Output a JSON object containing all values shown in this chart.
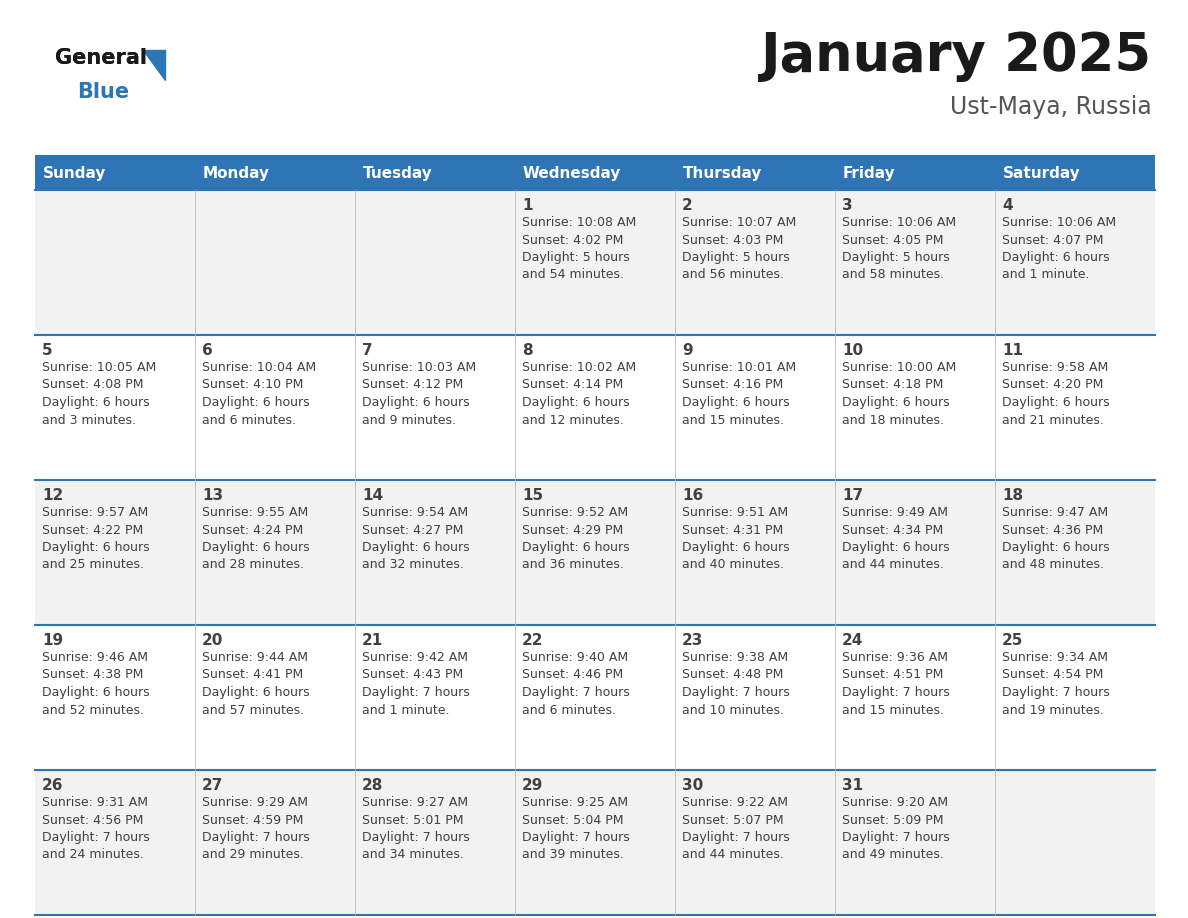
{
  "title": "January 2025",
  "subtitle": "Ust-Maya, Russia",
  "days_of_week": [
    "Sunday",
    "Monday",
    "Tuesday",
    "Wednesday",
    "Thursday",
    "Friday",
    "Saturday"
  ],
  "header_bg": "#2E75B6",
  "header_text_color": "#FFFFFF",
  "row_bg_even": "#F2F2F2",
  "row_bg_odd": "#FFFFFF",
  "border_color": "#2E75B6",
  "text_color": "#404040",
  "calendar_data": [
    {
      "day": 1,
      "col": 3,
      "row": 0,
      "sunrise": "10:08 AM",
      "sunset": "4:02 PM",
      "daylight": "5 hours\nand 54 minutes."
    },
    {
      "day": 2,
      "col": 4,
      "row": 0,
      "sunrise": "10:07 AM",
      "sunset": "4:03 PM",
      "daylight": "5 hours\nand 56 minutes."
    },
    {
      "day": 3,
      "col": 5,
      "row": 0,
      "sunrise": "10:06 AM",
      "sunset": "4:05 PM",
      "daylight": "5 hours\nand 58 minutes."
    },
    {
      "day": 4,
      "col": 6,
      "row": 0,
      "sunrise": "10:06 AM",
      "sunset": "4:07 PM",
      "daylight": "6 hours\nand 1 minute."
    },
    {
      "day": 5,
      "col": 0,
      "row": 1,
      "sunrise": "10:05 AM",
      "sunset": "4:08 PM",
      "daylight": "6 hours\nand 3 minutes."
    },
    {
      "day": 6,
      "col": 1,
      "row": 1,
      "sunrise": "10:04 AM",
      "sunset": "4:10 PM",
      "daylight": "6 hours\nand 6 minutes."
    },
    {
      "day": 7,
      "col": 2,
      "row": 1,
      "sunrise": "10:03 AM",
      "sunset": "4:12 PM",
      "daylight": "6 hours\nand 9 minutes."
    },
    {
      "day": 8,
      "col": 3,
      "row": 1,
      "sunrise": "10:02 AM",
      "sunset": "4:14 PM",
      "daylight": "6 hours\nand 12 minutes."
    },
    {
      "day": 9,
      "col": 4,
      "row": 1,
      "sunrise": "10:01 AM",
      "sunset": "4:16 PM",
      "daylight": "6 hours\nand 15 minutes."
    },
    {
      "day": 10,
      "col": 5,
      "row": 1,
      "sunrise": "10:00 AM",
      "sunset": "4:18 PM",
      "daylight": "6 hours\nand 18 minutes."
    },
    {
      "day": 11,
      "col": 6,
      "row": 1,
      "sunrise": "9:58 AM",
      "sunset": "4:20 PM",
      "daylight": "6 hours\nand 21 minutes."
    },
    {
      "day": 12,
      "col": 0,
      "row": 2,
      "sunrise": "9:57 AM",
      "sunset": "4:22 PM",
      "daylight": "6 hours\nand 25 minutes."
    },
    {
      "day": 13,
      "col": 1,
      "row": 2,
      "sunrise": "9:55 AM",
      "sunset": "4:24 PM",
      "daylight": "6 hours\nand 28 minutes."
    },
    {
      "day": 14,
      "col": 2,
      "row": 2,
      "sunrise": "9:54 AM",
      "sunset": "4:27 PM",
      "daylight": "6 hours\nand 32 minutes."
    },
    {
      "day": 15,
      "col": 3,
      "row": 2,
      "sunrise": "9:52 AM",
      "sunset": "4:29 PM",
      "daylight": "6 hours\nand 36 minutes."
    },
    {
      "day": 16,
      "col": 4,
      "row": 2,
      "sunrise": "9:51 AM",
      "sunset": "4:31 PM",
      "daylight": "6 hours\nand 40 minutes."
    },
    {
      "day": 17,
      "col": 5,
      "row": 2,
      "sunrise": "9:49 AM",
      "sunset": "4:34 PM",
      "daylight": "6 hours\nand 44 minutes."
    },
    {
      "day": 18,
      "col": 6,
      "row": 2,
      "sunrise": "9:47 AM",
      "sunset": "4:36 PM",
      "daylight": "6 hours\nand 48 minutes."
    },
    {
      "day": 19,
      "col": 0,
      "row": 3,
      "sunrise": "9:46 AM",
      "sunset": "4:38 PM",
      "daylight": "6 hours\nand 52 minutes."
    },
    {
      "day": 20,
      "col": 1,
      "row": 3,
      "sunrise": "9:44 AM",
      "sunset": "4:41 PM",
      "daylight": "6 hours\nand 57 minutes."
    },
    {
      "day": 21,
      "col": 2,
      "row": 3,
      "sunrise": "9:42 AM",
      "sunset": "4:43 PM",
      "daylight": "7 hours\nand 1 minute."
    },
    {
      "day": 22,
      "col": 3,
      "row": 3,
      "sunrise": "9:40 AM",
      "sunset": "4:46 PM",
      "daylight": "7 hours\nand 6 minutes."
    },
    {
      "day": 23,
      "col": 4,
      "row": 3,
      "sunrise": "9:38 AM",
      "sunset": "4:48 PM",
      "daylight": "7 hours\nand 10 minutes."
    },
    {
      "day": 24,
      "col": 5,
      "row": 3,
      "sunrise": "9:36 AM",
      "sunset": "4:51 PM",
      "daylight": "7 hours\nand 15 minutes."
    },
    {
      "day": 25,
      "col": 6,
      "row": 3,
      "sunrise": "9:34 AM",
      "sunset": "4:54 PM",
      "daylight": "7 hours\nand 19 minutes."
    },
    {
      "day": 26,
      "col": 0,
      "row": 4,
      "sunrise": "9:31 AM",
      "sunset": "4:56 PM",
      "daylight": "7 hours\nand 24 minutes."
    },
    {
      "day": 27,
      "col": 1,
      "row": 4,
      "sunrise": "9:29 AM",
      "sunset": "4:59 PM",
      "daylight": "7 hours\nand 29 minutes."
    },
    {
      "day": 28,
      "col": 2,
      "row": 4,
      "sunrise": "9:27 AM",
      "sunset": "5:01 PM",
      "daylight": "7 hours\nand 34 minutes."
    },
    {
      "day": 29,
      "col": 3,
      "row": 4,
      "sunrise": "9:25 AM",
      "sunset": "5:04 PM",
      "daylight": "7 hours\nand 39 minutes."
    },
    {
      "day": 30,
      "col": 4,
      "row": 4,
      "sunrise": "9:22 AM",
      "sunset": "5:07 PM",
      "daylight": "7 hours\nand 44 minutes."
    },
    {
      "day": 31,
      "col": 5,
      "row": 4,
      "sunrise": "9:20 AM",
      "sunset": "5:09 PM",
      "daylight": "7 hours\nand 49 minutes."
    }
  ],
  "logo_color_general": "#1a1a1a",
  "logo_color_blue": "#2E75B6",
  "logo_color_triangle": "#2E75B6"
}
